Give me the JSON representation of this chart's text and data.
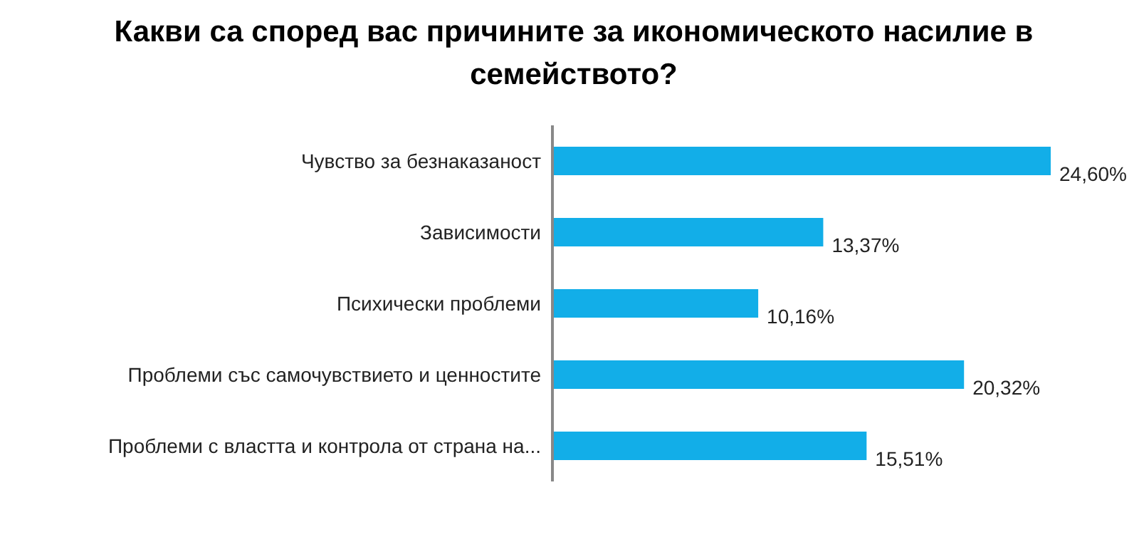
{
  "chart_data": {
    "type": "bar",
    "orientation": "horizontal",
    "title": "Какви са според вас причините за икономическото насилие в семейството?",
    "categories": [
      "Чувство за безнаказаност",
      "Зависимости",
      "Психически проблеми",
      "Проблеми със самочувствието и ценностите",
      "Проблеми с властта и контрола от страна на..."
    ],
    "values": [
      24.6,
      13.37,
      10.16,
      20.32,
      15.51
    ],
    "value_labels": [
      "24,60%",
      "13,37%",
      "10,16%",
      "20,32%",
      "15,51%"
    ],
    "color": "#12aee8",
    "grid": false,
    "legend": false
  }
}
